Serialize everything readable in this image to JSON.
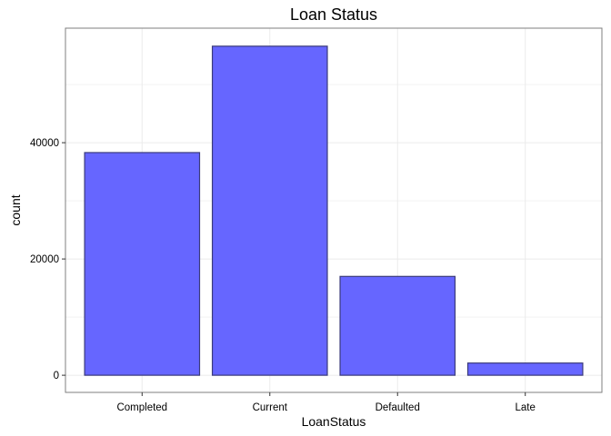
{
  "chart_data": {
    "type": "bar",
    "title": "Loan Status",
    "xlabel": "LoanStatus",
    "ylabel": "count",
    "categories": [
      "Completed",
      "Current",
      "Defaulted",
      "Late"
    ],
    "values": [
      38300,
      56600,
      17000,
      2100
    ],
    "ylim": [
      -2950,
      59700
    ],
    "y_ticks": [
      0,
      20000,
      40000
    ],
    "y_tick_labels": [
      "0",
      "20000",
      "40000"
    ],
    "grid": true,
    "legend": "none",
    "colors": {
      "bar_fill": "#6666ff",
      "bar_stroke": "#3b3b7a",
      "grid": "#ebebeb",
      "panel_border": "#7f7f7f",
      "background": "#ffffff"
    }
  }
}
